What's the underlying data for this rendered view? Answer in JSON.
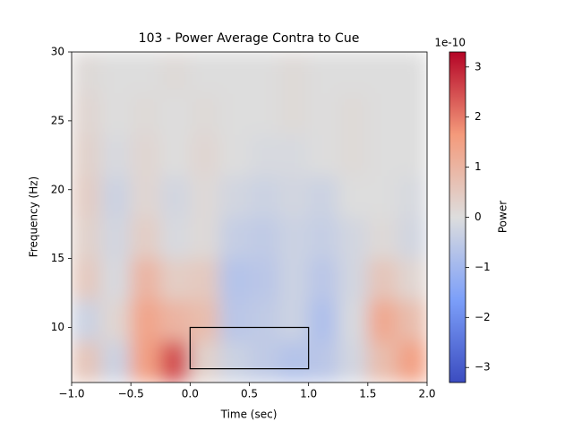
{
  "chart_data": {
    "type": "heatmap",
    "title": "103 - Power Average Contra to Cue",
    "x_label": "Time (sec)",
    "y_label": "Frequency (Hz)",
    "x_edges": [
      -1,
      -0.75,
      -0.5,
      -0.25,
      0,
      0.25,
      0.5,
      0.75,
      1,
      1.25,
      1.5,
      1.75,
      2
    ],
    "y_edges": [
      6,
      9,
      12,
      15,
      18,
      21,
      24,
      27,
      30
    ],
    "z": [
      [
        0.6,
        -0.3,
        1.5,
        2.5,
        0.3,
        -0.3,
        -0.5,
        -0.7,
        -0.6,
        -0.2,
        0.8,
        1.5
      ],
      [
        -0.3,
        0.2,
        1.4,
        1.0,
        0.8,
        -0.6,
        -0.5,
        -0.3,
        -0.8,
        -0.1,
        1.3,
        0.8
      ],
      [
        0.5,
        -0.1,
        1.0,
        0.4,
        0.5,
        -0.7,
        -0.6,
        -0.3,
        -0.6,
        -0.2,
        0.6,
        0.2
      ],
      [
        0.3,
        -0.2,
        0.4,
        -0.1,
        0.1,
        -0.4,
        -0.5,
        -0.3,
        -0.4,
        -0.2,
        0.1,
        -0.2
      ],
      [
        0.4,
        -0.3,
        0.2,
        -0.2,
        0.1,
        -0.2,
        -0.3,
        -0.2,
        -0.3,
        0.0,
        0.0,
        -0.1
      ],
      [
        0.3,
        -0.1,
        0.2,
        0.0,
        0.2,
        0.0,
        -0.1,
        -0.1,
        0.0,
        0.1,
        0.0,
        0.0
      ],
      [
        0.2,
        0.0,
        0.1,
        0.0,
        0.1,
        0.0,
        0.0,
        0.1,
        0.0,
        0.1,
        0.0,
        0.0
      ],
      [
        0.1,
        0.0,
        0.0,
        0.1,
        0.0,
        0.0,
        0.0,
        0.1,
        0.0,
        0.0,
        0.0,
        0.0
      ]
    ],
    "xlim": [
      -1,
      2
    ],
    "ylim": [
      6,
      30
    ],
    "xticks": [
      {
        "value": -1,
        "label": "−1.0"
      },
      {
        "value": -0.5,
        "label": "−0.5"
      },
      {
        "value": 0,
        "label": "0.0"
      },
      0.5,
      {
        "value": 1,
        "label": "1.0"
      },
      1.5,
      {
        "value": 2,
        "label": "2.0"
      }
    ],
    "yticks": [
      10,
      15,
      20,
      25,
      30
    ],
    "colormap": "coolwarm",
    "clim": [
      -3.3,
      3.3
    ],
    "cticks": [
      {
        "value": -3,
        "label": "−3"
      },
      {
        "value": -2,
        "label": "−2"
      },
      {
        "value": -1,
        "label": "−1"
      },
      0,
      1,
      2,
      3
    ],
    "colorbar_label": "Power",
    "colorbar_offset": "1e-10",
    "box": {
      "x": [
        0,
        1
      ],
      "y": [
        7,
        10
      ],
      "color": "#000000"
    }
  }
}
